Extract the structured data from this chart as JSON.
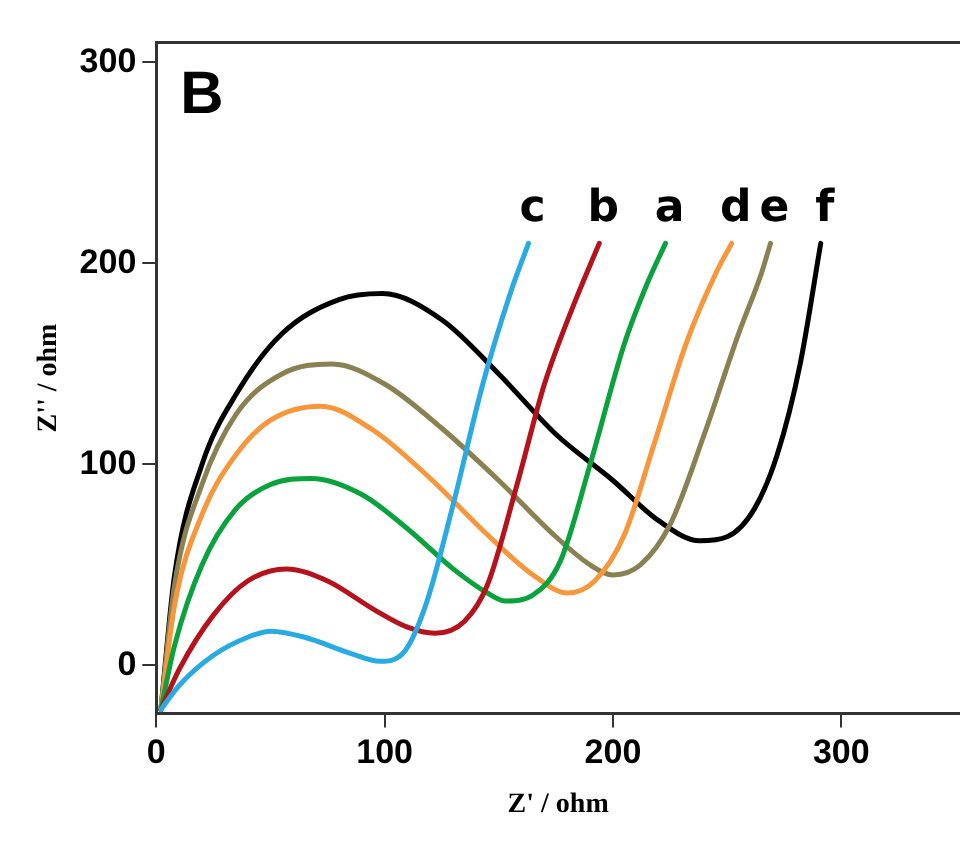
{
  "chart_data": {
    "type": "line",
    "title": "B",
    "xlabel": "Z' / ohm",
    "ylabel": "Z'' / ohm",
    "xlim": [
      0,
      352
    ],
    "ylim": [
      -24,
      310
    ],
    "xticks": [
      0,
      100,
      200,
      300
    ],
    "yticks": [
      0,
      100,
      200,
      300
    ],
    "grid": false,
    "legend": false,
    "marker": "none",
    "line_style": "solid",
    "series": [
      {
        "name": "c",
        "color": "#29abe2",
        "x": [
          2,
          10,
          25,
          40,
          50,
          65,
          85,
          98,
          108,
          118,
          130,
          143,
          155,
          163
        ],
        "values": [
          -22,
          -10,
          5,
          14,
          17,
          14,
          6,
          2,
          6,
          30,
          80,
          140,
          185,
          210
        ]
      },
      {
        "name": "b",
        "color": "#b5121b",
        "x": [
          2,
          10,
          25,
          40,
          57,
          75,
          95,
          110,
          122,
          135,
          145,
          158,
          170,
          183,
          194
        ],
        "values": [
          -22,
          -2,
          25,
          42,
          48,
          42,
          28,
          19,
          16,
          22,
          40,
          90,
          140,
          180,
          210
        ]
      },
      {
        "name": "a",
        "color": "#0aa23c",
        "x": [
          2,
          8,
          20,
          35,
          50,
          68,
          90,
          110,
          130,
          145,
          153,
          165,
          177,
          190,
          205,
          215,
          223
        ],
        "values": [
          -22,
          10,
          50,
          78,
          90,
          93,
          85,
          68,
          48,
          36,
          32,
          35,
          52,
          100,
          160,
          190,
          210
        ]
      },
      {
        "name": "d",
        "color": "#f7963a",
        "x": [
          2,
          8,
          20,
          35,
          50,
          72,
          95,
          120,
          145,
          165,
          180,
          192,
          205,
          218,
          232,
          245,
          252
        ],
        "values": [
          -22,
          30,
          75,
          105,
          122,
          129,
          117,
          93,
          65,
          45,
          36,
          42,
          65,
          110,
          160,
          195,
          210
        ]
      },
      {
        "name": "e",
        "color": "#8a8152",
        "x": [
          2,
          8,
          20,
          35,
          55,
          77,
          100,
          125,
          150,
          175,
          190,
          200,
          212,
          225,
          240,
          255,
          265,
          269
        ],
        "values": [
          -22,
          40,
          90,
          125,
          145,
          150,
          140,
          118,
          92,
          64,
          50,
          45,
          50,
          70,
          115,
          165,
          195,
          210
        ]
      },
      {
        "name": "f",
        "color": "#000000",
        "x": [
          2,
          8,
          20,
          35,
          55,
          80,
          99,
          125,
          150,
          175,
          200,
          220,
          238,
          250,
          262,
          272,
          282,
          291
        ],
        "values": [
          -22,
          45,
          100,
          135,
          165,
          182,
          185,
          172,
          145,
          115,
          92,
          72,
          62,
          64,
          78,
          105,
          150,
          210
        ]
      }
    ]
  }
}
